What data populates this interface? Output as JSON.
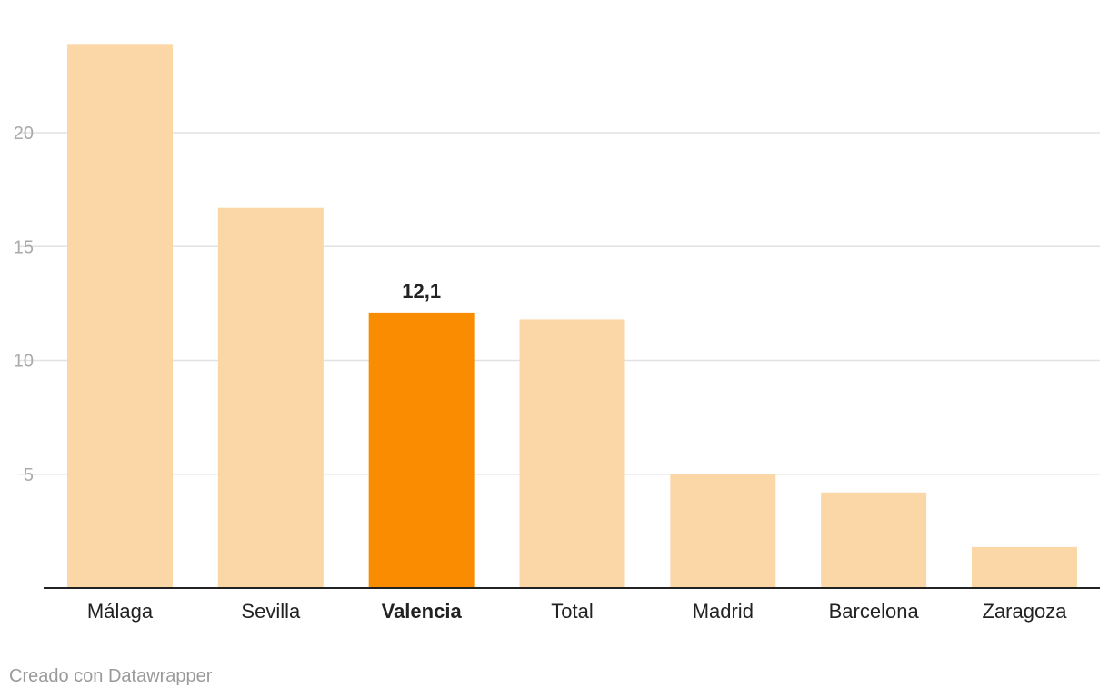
{
  "chart_data": {
    "type": "bar",
    "categories": [
      "Málaga",
      "Sevilla",
      "Valencia",
      "Total",
      "Madrid",
      "Barcelona",
      "Zaragoza"
    ],
    "values": [
      23.9,
      16.7,
      12.1,
      11.8,
      5.0,
      4.2,
      1.8
    ],
    "highlight_index": 2,
    "highlight_label": "12,1",
    "y_ticks": [
      5,
      10,
      15,
      20
    ],
    "ylim": [
      0,
      25
    ],
    "grid": true,
    "colors": {
      "bar": "#fbd7a8",
      "highlight": "#f98c00",
      "grid": "#e2e2e2",
      "axis": "#222222",
      "tick": "#aaaaaa"
    }
  },
  "footer": {
    "credit": "Creado con Datawrapper"
  }
}
